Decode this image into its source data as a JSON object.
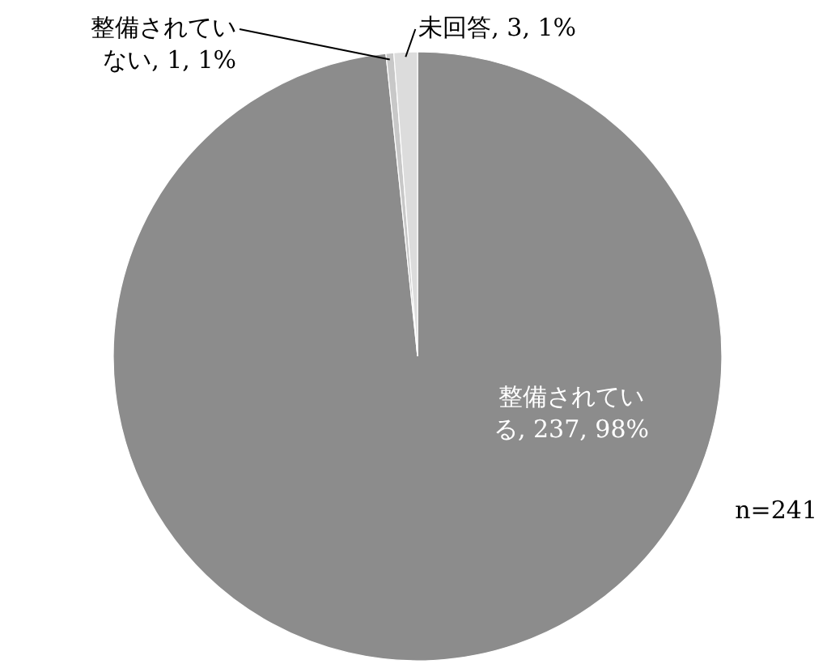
{
  "chart_data": {
    "type": "pie",
    "categories": [
      "整備されている",
      "整備されていない",
      "未回答"
    ],
    "values": [
      237,
      1,
      3
    ],
    "value_labels": [
      "237, 98%",
      "1, 1%",
      "3, 1%"
    ],
    "colors": [
      "#8c8c8c",
      "#c8c8c8",
      "#dcdcdc"
    ],
    "annotations": [
      "n=241"
    ]
  }
}
